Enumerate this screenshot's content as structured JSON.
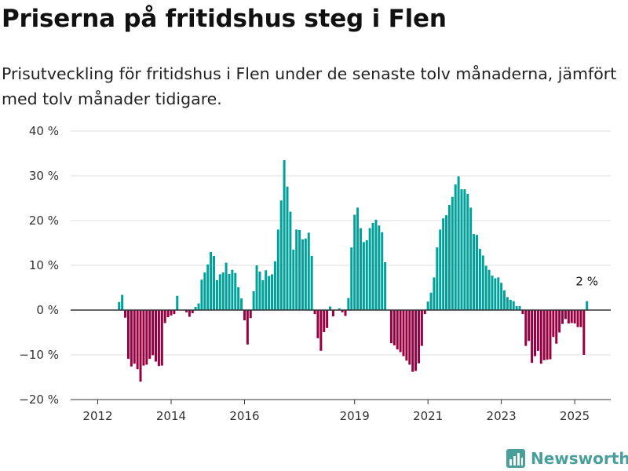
{
  "brand": {
    "name": "Newsworthy",
    "icon": "bar-chart-logo-icon",
    "color": "#4a9f9b"
  },
  "chart_data": {
    "type": "bar",
    "title": "Priserna på fritidshus steg i Flen",
    "subtitle": "Prisutveckling för fritidshus i Flen under de senaste tolv månaderna, jämfört med tolv månader tidigare.",
    "xlabel": "",
    "ylabel": "",
    "ylim": [
      -20,
      40
    ],
    "yticks": [
      -20,
      -10,
      0,
      10,
      20,
      30,
      40
    ],
    "ytick_labels": [
      "−20 %",
      "−10 %",
      "0 %",
      "10 %",
      "20 %",
      "30 %",
      "40 %"
    ],
    "xticks": [
      2012,
      2014,
      2016,
      2019,
      2021,
      2023,
      2025
    ],
    "x_start": "2012-01",
    "grid": true,
    "legend": "none",
    "colors": {
      "positive": "#00a19a",
      "negative": "#990041",
      "zero_line": "#333333",
      "grid": "#dddddd"
    },
    "annotation": {
      "text": "2 %",
      "index": 160
    },
    "values": [
      null,
      null,
      null,
      null,
      null,
      null,
      null,
      1.8,
      3.4,
      -1.7,
      -10.9,
      -12.6,
      -12.0,
      -13.2,
      -16.0,
      -12.4,
      -12.2,
      -10.9,
      -10.1,
      -11.5,
      -12.5,
      -12.4,
      -2.9,
      -1.6,
      -1.2,
      -0.9,
      3.2,
      null,
      null,
      -0.5,
      -1.5,
      -0.7,
      0.7,
      1.5,
      6.8,
      8.4,
      10.2,
      13.0,
      12.1,
      6.7,
      8.0,
      8.4,
      10.6,
      8.1,
      9.0,
      8.3,
      5.1,
      2.6,
      -2.3,
      -7.7,
      -1.8,
      4.2,
      10.0,
      8.6,
      6.7,
      8.9,
      7.6,
      8.0,
      10.9,
      18.0,
      24.5,
      33.5,
      27.6,
      22.0,
      13.5,
      18.0,
      17.9,
      15.8,
      16.0,
      17.3,
      12.1,
      -0.9,
      -6.3,
      -9.1,
      -4.9,
      -4.0,
      0.8,
      -1.4,
      null,
      0.4,
      -0.5,
      -1.3,
      2.7,
      14.0,
      21.3,
      22.9,
      18.3,
      15.2,
      15.6,
      18.3,
      19.5,
      20.2,
      18.9,
      17.4,
      10.7,
      null,
      -7.4,
      -7.9,
      -8.8,
      -9.4,
      -10.3,
      -11.3,
      -12.2,
      -13.8,
      -13.6,
      -11.9,
      -8.0,
      -0.9,
      1.9,
      3.9,
      7.3,
      14.0,
      18.0,
      20.5,
      21.2,
      23.5,
      25.3,
      28.1,
      29.9,
      27.0,
      27.0,
      26.0,
      22.9,
      17.0,
      16.8,
      13.7,
      12.2,
      9.9,
      9.0,
      7.7,
      7.1,
      7.3,
      6.1,
      4.4,
      2.9,
      2.3,
      2.0,
      0.9,
      0.9,
      -0.9,
      -8.0,
      -6.9,
      -11.8,
      -10.3,
      -9.1,
      -12.0,
      -11.2,
      -11.1,
      -11.0,
      -6.0,
      -7.5,
      -5.0,
      -3.1,
      -2.0,
      -3.0,
      -2.9,
      -3.0,
      -3.8,
      -3.8,
      -10.0,
      2.0
    ]
  }
}
